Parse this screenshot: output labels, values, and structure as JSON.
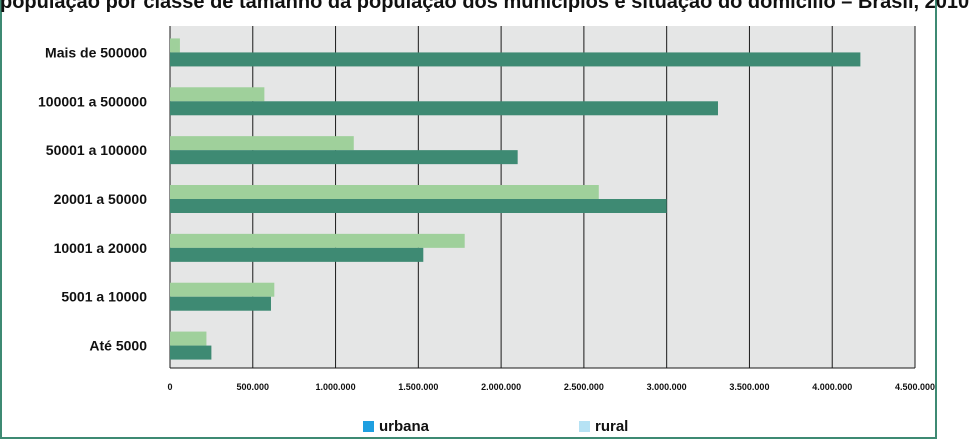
{
  "title": "população por classe de tamanho da população dos municípios e situação do domicílio – Brasil, 2010",
  "chart_data": {
    "type": "bar",
    "orientation": "horizontal",
    "title": "população por classe de tamanho da população dos municípios e situação do domicílio – Brasil, 2010",
    "categories": [
      "Mais de 500000",
      "100001 a 500000",
      "50001 a 100000",
      "20001 a 50000",
      "10001 a 20000",
      "5001 a 10000",
      "Até 5000"
    ],
    "series": [
      {
        "name": "rural",
        "color": "#9fd09b",
        "values": [
          60000,
          570000,
          1110000,
          2590000,
          1780000,
          630000,
          220000
        ]
      },
      {
        "name": "urbana",
        "color": "#3e8a73",
        "values": [
          4170000,
          3310000,
          2100000,
          3000000,
          1530000,
          610000,
          250000
        ]
      }
    ],
    "xlim": [
      0,
      4500000
    ],
    "xticks": [
      0,
      500000,
      1000000,
      1500000,
      2000000,
      2500000,
      3000000,
      3500000,
      4000000,
      4500000
    ],
    "xtick_labels": [
      "0",
      "500.000",
      "1.000.000",
      "1.500.000",
      "2.000.000",
      "2.500.000",
      "3.000.000",
      "3.500.000",
      "4.000.000",
      "4.500.000"
    ],
    "grid": "vertical",
    "legend_position": "bottom"
  },
  "legend": [
    {
      "label": "urbana",
      "color": "#1e9fe0"
    },
    {
      "label": "rural",
      "color": "#b6e2f4"
    }
  ]
}
